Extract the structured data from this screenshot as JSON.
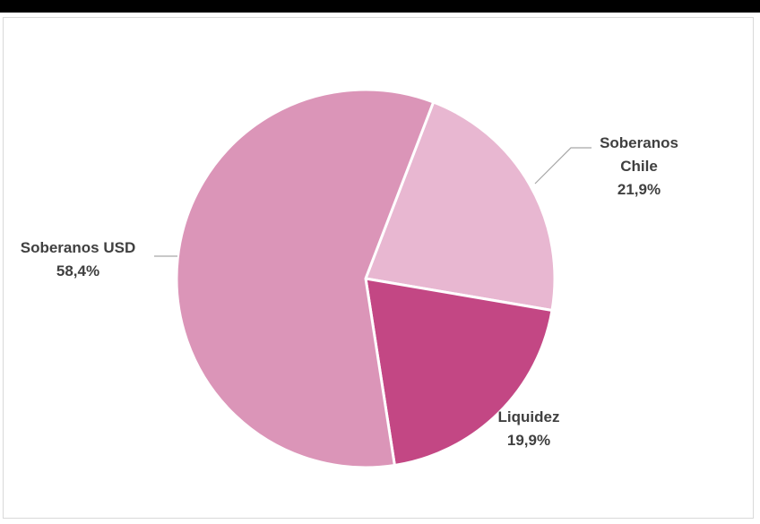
{
  "chart_data": {
    "type": "pie",
    "title": "",
    "slices": [
      {
        "label": "Soberanos Chile",
        "label_lines": [
          "Soberanos",
          "Chile"
        ],
        "value": 21.9,
        "value_text": "21,9%",
        "color": "#e8b7d1"
      },
      {
        "label": "Liquidez",
        "label_lines": [
          "Liquidez"
        ],
        "value": 19.9,
        "value_text": "19,9%",
        "color": "#c34784"
      },
      {
        "label": "Soberanos USD",
        "label_lines": [
          "Soberanos USD"
        ],
        "value": 58.4,
        "value_text": "58,4%",
        "color": "#db95b8"
      }
    ],
    "legend": "none",
    "separator_color": "#ffffff",
    "leader_line_color": "#a6a6a6"
  }
}
